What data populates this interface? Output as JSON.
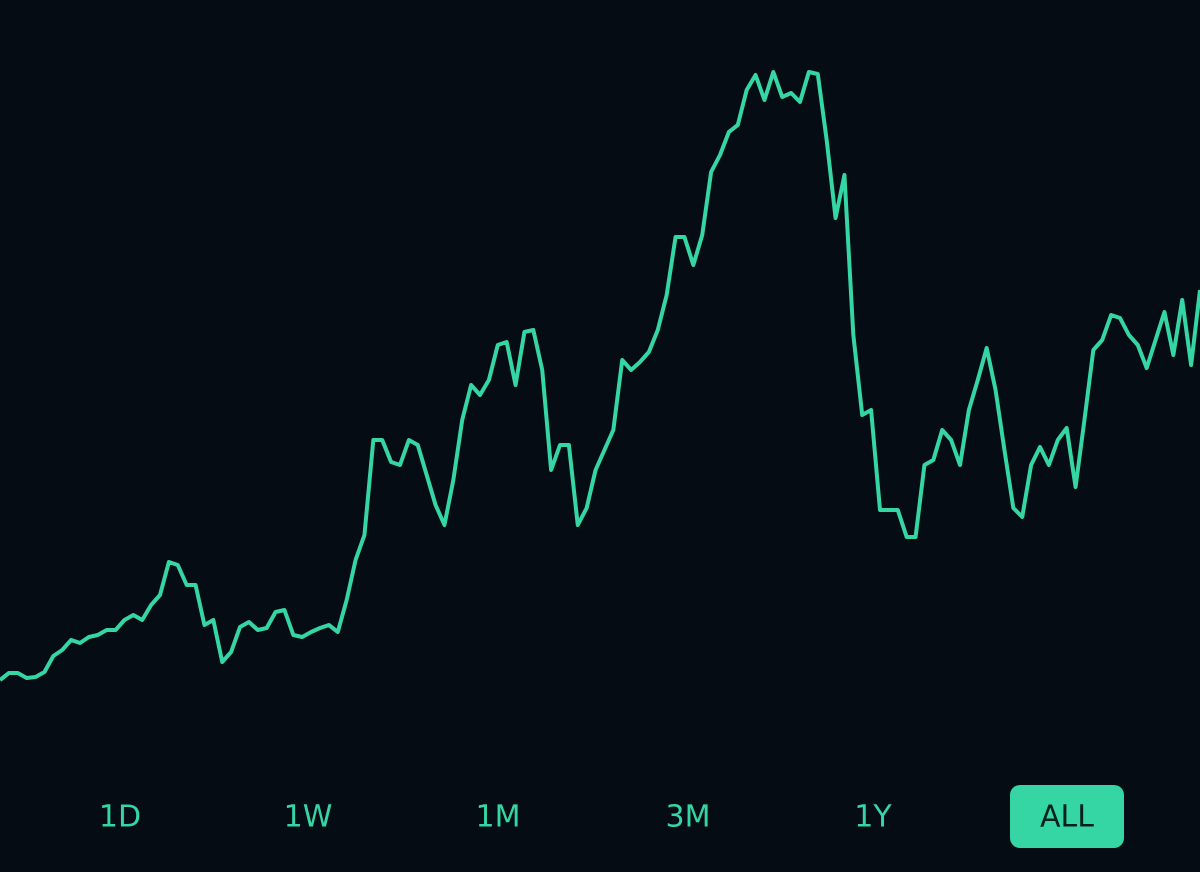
{
  "chart_data": {
    "type": "line",
    "series": [
      {
        "color": "#35d6a4",
        "values": [
          192,
          199,
          199,
          194,
          195,
          200,
          216,
          222,
          232,
          229,
          235,
          237,
          242,
          242,
          252,
          257,
          252,
          267,
          277,
          310,
          307,
          287,
          287,
          247,
          252,
          210,
          220,
          245,
          250,
          242,
          244,
          260,
          262,
          237,
          235,
          240,
          244,
          247,
          240,
          272,
          312,
          337,
          432,
          432,
          410,
          407,
          432,
          427,
          397,
          367,
          347,
          392,
          452,
          487,
          477,
          492,
          527,
          530,
          487,
          540,
          542,
          502,
          402,
          427,
          427,
          347,
          364,
          402,
          422,
          442,
          512,
          502,
          510,
          520,
          542,
          577,
          635,
          635,
          607,
          637,
          700,
          717,
          740,
          747,
          782,
          797,
          772,
          800,
          775,
          779,
          770,
          800,
          798,
          732,
          654,
          697,
          537,
          457,
          462,
          362,
          362,
          362,
          335,
          335,
          407,
          412,
          442,
          432,
          407,
          462,
          492,
          524,
          482,
          422,
          364,
          355,
          407,
          425,
          407,
          432,
          444,
          385,
          452,
          522,
          532,
          557,
          554,
          537,
          527,
          504,
          532,
          560,
          517,
          572,
          507,
          582
        ]
      }
    ],
    "ylim": [
      0,
      872
    ],
    "range_buttons": {
      "options": [
        "1D",
        "1W",
        "1M",
        "3M",
        "1Y",
        "ALL"
      ],
      "selected": 5
    }
  }
}
